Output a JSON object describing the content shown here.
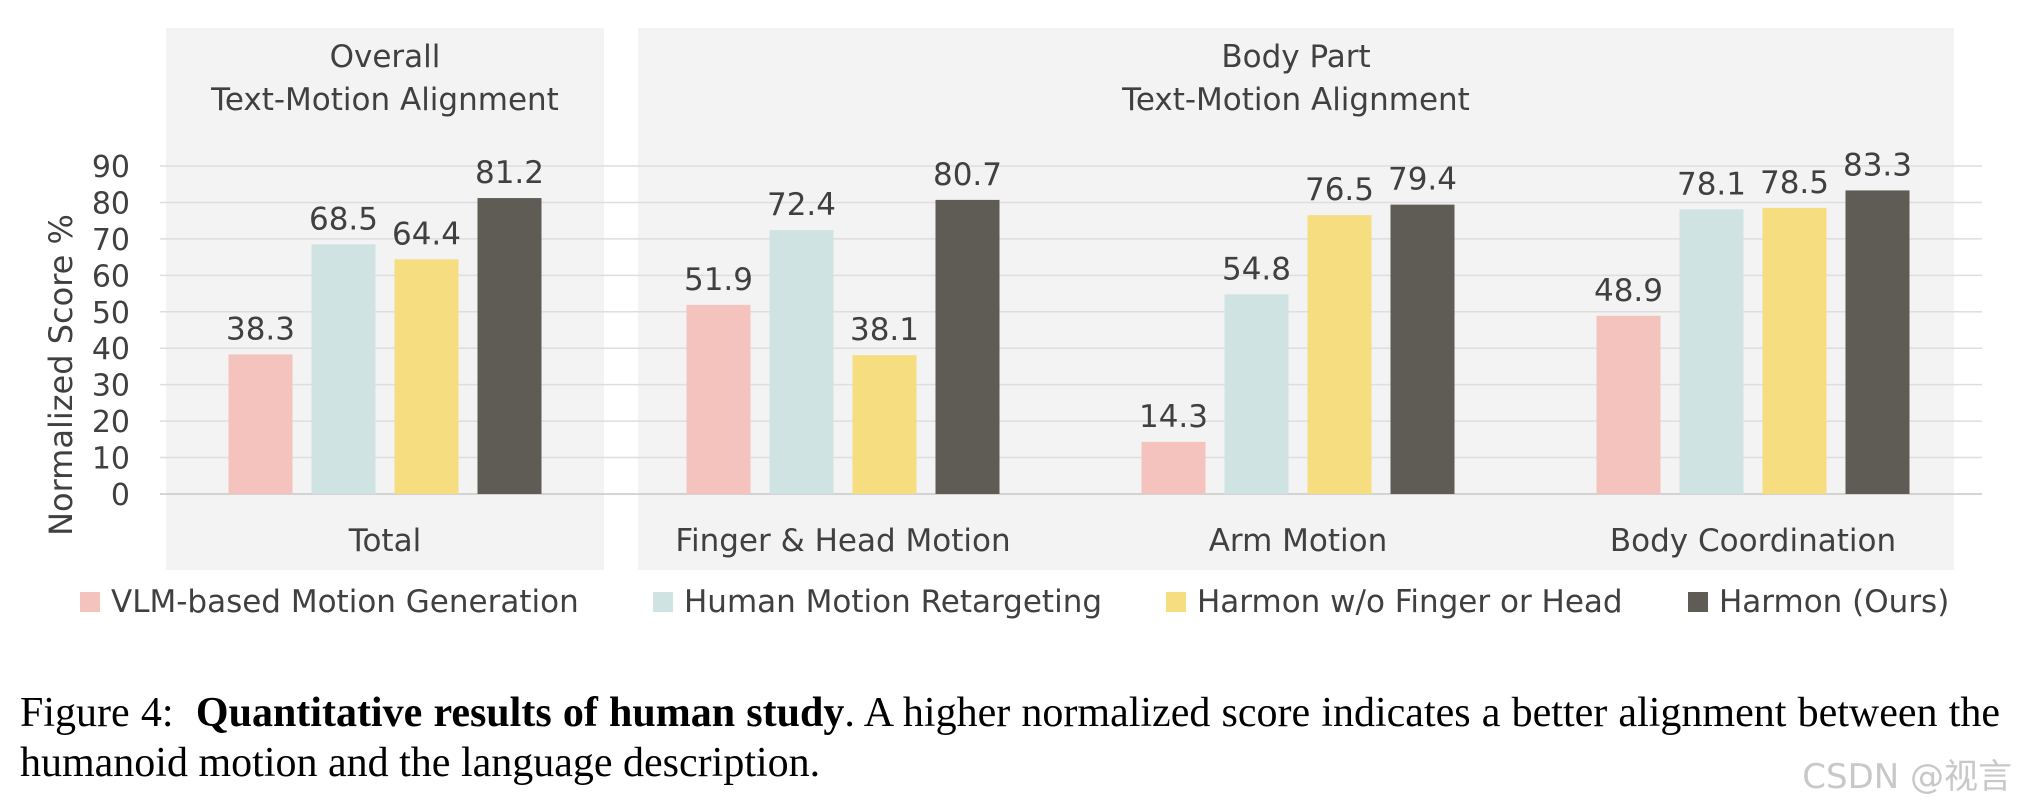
{
  "chart_data": {
    "type": "bar",
    "ylabel": "Normalized Score %",
    "ylim": [
      0,
      90
    ],
    "yticks": [
      0,
      10,
      20,
      30,
      40,
      50,
      60,
      70,
      80,
      90
    ],
    "grid": true,
    "panels": [
      {
        "title_line1": "Overall",
        "title_line2": "Text-Motion Alignment"
      },
      {
        "title_line1": "Body Part",
        "title_line2": "Text-Motion Alignment"
      }
    ],
    "categories": [
      "Total",
      "Finger & Head Motion",
      "Arm Motion",
      "Body Coordination"
    ],
    "series": [
      {
        "name": "VLM-based Motion Generation",
        "color": "#f4c3bd",
        "values": [
          38.3,
          51.9,
          14.3,
          48.9
        ]
      },
      {
        "name": "Human Motion Retargeting",
        "color": "#cfe3e2",
        "values": [
          68.5,
          72.4,
          54.8,
          78.1
        ]
      },
      {
        "name": "Harmon w/o Finger or Head",
        "color": "#f6dd80",
        "values": [
          64.4,
          38.1,
          76.5,
          78.5
        ]
      },
      {
        "name": "Harmon (Ours)",
        "color": "#5f5b55",
        "values": [
          81.2,
          80.7,
          79.4,
          83.3
        ]
      }
    ],
    "legend_position": "bottom"
  },
  "caption": {
    "prefix": "Figure 4:",
    "bold": "Quantitative results of human study",
    "rest": ". A higher normalized score indicates a better alignment between the humanoid motion and the language description."
  },
  "watermark": "CSDN @视言"
}
